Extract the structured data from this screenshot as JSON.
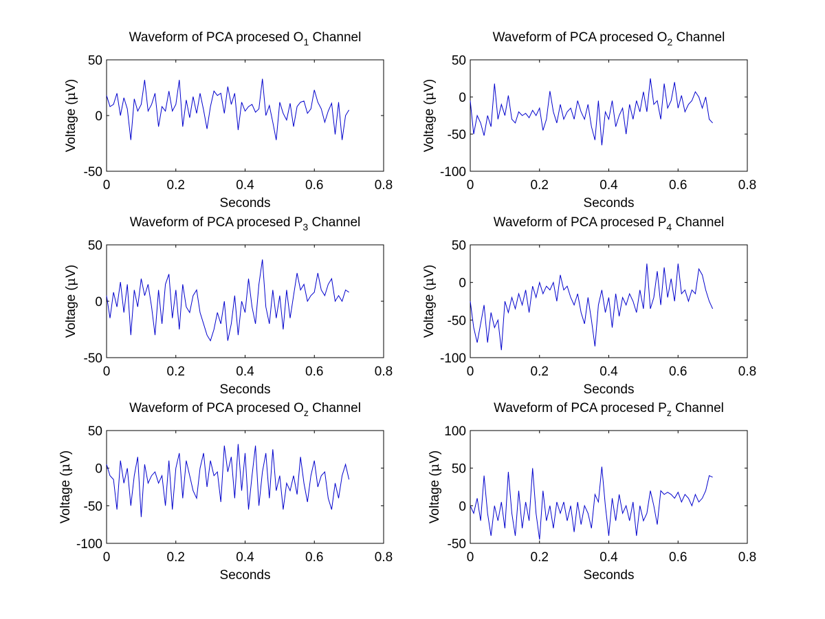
{
  "chart_data": [
    {
      "type": "line",
      "title_prefix": "Waveform of PCA procesed O",
      "title_sub": "1",
      "title_suffix": " Channel",
      "xlabel": "Seconds",
      "ylabel_prefix": "Voltage (",
      "ylabel_mu": "μ",
      "ylabel_suffix": "V)",
      "xlim": [
        0,
        0.8
      ],
      "ylim": [
        -50,
        50
      ],
      "xticks": [
        "0",
        "0.2",
        "0.4",
        "0.6",
        "0.8"
      ],
      "yticks": [
        "-50",
        "0",
        "50"
      ],
      "grid": false,
      "line_color": "#0000cc",
      "series": [
        {
          "x": [
            0.0,
            0.01,
            0.02,
            0.03,
            0.04,
            0.05,
            0.06,
            0.07,
            0.08,
            0.09,
            0.1,
            0.11,
            0.12,
            0.13,
            0.14,
            0.15,
            0.16,
            0.17,
            0.18,
            0.19,
            0.2,
            0.21,
            0.22,
            0.23,
            0.24,
            0.25,
            0.26,
            0.27,
            0.28,
            0.29,
            0.3,
            0.31,
            0.32,
            0.33,
            0.34,
            0.35,
            0.36,
            0.37,
            0.38,
            0.39,
            0.4,
            0.41,
            0.42,
            0.43,
            0.44,
            0.45,
            0.46,
            0.47,
            0.48,
            0.49,
            0.5,
            0.51,
            0.52,
            0.53,
            0.54,
            0.55,
            0.56,
            0.57,
            0.58,
            0.59,
            0.6,
            0.61,
            0.62,
            0.63,
            0.64,
            0.65,
            0.66,
            0.67,
            0.68,
            0.69,
            0.7
          ],
          "y": [
            18,
            8,
            10,
            20,
            0,
            16,
            6,
            -22,
            15,
            4,
            10,
            32,
            4,
            10,
            20,
            -10,
            8,
            4,
            22,
            4,
            10,
            32,
            -10,
            14,
            -2,
            17,
            2,
            20,
            5,
            -12,
            8,
            22,
            18,
            20,
            2,
            26,
            10,
            20,
            -13,
            12,
            4,
            8,
            10,
            3,
            6,
            33,
            0,
            9,
            -6,
            -22,
            12,
            2,
            -4,
            11,
            -10,
            8,
            12,
            13,
            2,
            6,
            23,
            12,
            6,
            -6,
            4,
            11,
            -17,
            12,
            -22,
            0,
            5
          ]
        }
      ]
    },
    {
      "type": "line",
      "title_prefix": "Waveform of PCA procesed O",
      "title_sub": "2",
      "title_suffix": " Channel",
      "xlabel": "Seconds",
      "ylabel_prefix": "Voltage (",
      "ylabel_mu": "μ",
      "ylabel_suffix": "V)",
      "xlim": [
        0,
        0.8
      ],
      "ylim": [
        -100,
        50
      ],
      "xticks": [
        "0",
        "0.2",
        "0.4",
        "0.6",
        "0.8"
      ],
      "yticks": [
        "-100",
        "-50",
        "0",
        "50"
      ],
      "grid": false,
      "line_color": "#0000cc",
      "series": [
        {
          "x": [
            0.0,
            0.01,
            0.02,
            0.03,
            0.04,
            0.05,
            0.06,
            0.07,
            0.08,
            0.09,
            0.1,
            0.11,
            0.12,
            0.13,
            0.14,
            0.15,
            0.16,
            0.17,
            0.18,
            0.19,
            0.2,
            0.21,
            0.22,
            0.23,
            0.24,
            0.25,
            0.26,
            0.27,
            0.28,
            0.29,
            0.3,
            0.31,
            0.32,
            0.33,
            0.34,
            0.35,
            0.36,
            0.37,
            0.38,
            0.39,
            0.4,
            0.41,
            0.42,
            0.43,
            0.44,
            0.45,
            0.46,
            0.47,
            0.48,
            0.49,
            0.5,
            0.51,
            0.52,
            0.53,
            0.54,
            0.55,
            0.56,
            0.57,
            0.58,
            0.59,
            0.6,
            0.61,
            0.62,
            0.63,
            0.64,
            0.65,
            0.66,
            0.67,
            0.68,
            0.69,
            0.7
          ],
          "y": [
            -5,
            -50,
            -25,
            -35,
            -52,
            -25,
            -40,
            18,
            -30,
            -10,
            -25,
            2,
            -30,
            -35,
            -20,
            -25,
            -22,
            -28,
            -18,
            -25,
            -15,
            -45,
            -30,
            8,
            -20,
            -35,
            -10,
            -30,
            -20,
            -15,
            -30,
            -5,
            -20,
            -30,
            -10,
            -40,
            -58,
            -5,
            -65,
            -20,
            -30,
            -5,
            -40,
            -25,
            -15,
            -50,
            -10,
            -30,
            -5,
            -20,
            7,
            -20,
            25,
            -10,
            -5,
            -30,
            18,
            -15,
            -5,
            20,
            -15,
            2,
            -20,
            -10,
            -5,
            7,
            0,
            -15,
            0,
            -30,
            -35
          ]
        }
      ]
    },
    {
      "type": "line",
      "title_prefix": "Waveform of PCA procesed P",
      "title_sub": "3",
      "title_suffix": " Channel",
      "xlabel": "Seconds",
      "ylabel_prefix": "Voltage (",
      "ylabel_mu": "μ",
      "ylabel_suffix": "V)",
      "xlim": [
        0,
        0.8
      ],
      "ylim": [
        -50,
        50
      ],
      "xticks": [
        "0",
        "0.2",
        "0.4",
        "0.6",
        "0.8"
      ],
      "yticks": [
        "-50",
        "0",
        "50"
      ],
      "grid": false,
      "line_color": "#0000cc",
      "series": [
        {
          "x": [
            0.0,
            0.01,
            0.02,
            0.03,
            0.04,
            0.05,
            0.06,
            0.07,
            0.08,
            0.09,
            0.1,
            0.11,
            0.12,
            0.13,
            0.14,
            0.15,
            0.16,
            0.17,
            0.18,
            0.19,
            0.2,
            0.21,
            0.22,
            0.23,
            0.24,
            0.25,
            0.26,
            0.27,
            0.28,
            0.29,
            0.3,
            0.31,
            0.32,
            0.33,
            0.34,
            0.35,
            0.36,
            0.37,
            0.38,
            0.39,
            0.4,
            0.41,
            0.42,
            0.43,
            0.44,
            0.45,
            0.46,
            0.47,
            0.48,
            0.49,
            0.5,
            0.51,
            0.52,
            0.53,
            0.54,
            0.55,
            0.56,
            0.57,
            0.58,
            0.59,
            0.6,
            0.61,
            0.62,
            0.63,
            0.64,
            0.65,
            0.66,
            0.67,
            0.68,
            0.69,
            0.7
          ],
          "y": [
            5,
            -15,
            8,
            -5,
            17,
            -10,
            15,
            -30,
            10,
            -5,
            20,
            5,
            15,
            -5,
            -30,
            10,
            -20,
            15,
            24,
            -15,
            10,
            -25,
            15,
            -5,
            -10,
            5,
            10,
            -10,
            -20,
            -30,
            -35,
            -25,
            -10,
            -20,
            0,
            -35,
            -20,
            5,
            -30,
            0,
            -10,
            20,
            -5,
            -20,
            15,
            37,
            -5,
            -20,
            10,
            -15,
            5,
            -25,
            10,
            -15,
            5,
            25,
            10,
            15,
            0,
            5,
            8,
            25,
            10,
            5,
            15,
            20,
            0,
            5,
            0,
            10,
            8
          ]
        }
      ]
    },
    {
      "type": "line",
      "title_prefix": "Waveform of PCA procesed P",
      "title_sub": "4",
      "title_suffix": " Channel",
      "xlabel": "Seconds",
      "ylabel_prefix": "Voltage (",
      "ylabel_mu": "μ",
      "ylabel_suffix": "V)",
      "xlim": [
        0,
        0.8
      ],
      "ylim": [
        -100,
        50
      ],
      "xticks": [
        "0",
        "0.2",
        "0.4",
        "0.6",
        "0.8"
      ],
      "yticks": [
        "-100",
        "-50",
        "0",
        "50"
      ],
      "grid": false,
      "line_color": "#0000cc",
      "series": [
        {
          "x": [
            0.0,
            0.01,
            0.02,
            0.03,
            0.04,
            0.05,
            0.06,
            0.07,
            0.08,
            0.09,
            0.1,
            0.11,
            0.12,
            0.13,
            0.14,
            0.15,
            0.16,
            0.17,
            0.18,
            0.19,
            0.2,
            0.21,
            0.22,
            0.23,
            0.24,
            0.25,
            0.26,
            0.27,
            0.28,
            0.29,
            0.3,
            0.31,
            0.32,
            0.33,
            0.34,
            0.35,
            0.36,
            0.37,
            0.38,
            0.39,
            0.4,
            0.41,
            0.42,
            0.43,
            0.44,
            0.45,
            0.46,
            0.47,
            0.48,
            0.49,
            0.5,
            0.51,
            0.52,
            0.53,
            0.54,
            0.55,
            0.56,
            0.57,
            0.58,
            0.59,
            0.6,
            0.61,
            0.62,
            0.63,
            0.64,
            0.65,
            0.66,
            0.67,
            0.68,
            0.69,
            0.7
          ],
          "y": [
            -25,
            -60,
            -80,
            -55,
            -30,
            -80,
            -40,
            -60,
            -50,
            -90,
            -25,
            -40,
            -20,
            -35,
            -15,
            -30,
            -10,
            -40,
            -5,
            -20,
            0,
            -15,
            -5,
            -10,
            0,
            -25,
            10,
            -10,
            -5,
            -20,
            -30,
            -15,
            -40,
            -55,
            -20,
            -50,
            -85,
            -30,
            -10,
            -40,
            -20,
            -60,
            -15,
            -45,
            -20,
            -30,
            -15,
            -25,
            -40,
            -10,
            -35,
            25,
            -35,
            -20,
            15,
            -30,
            20,
            -20,
            5,
            -25,
            25,
            -15,
            -10,
            -25,
            -10,
            -15,
            18,
            10,
            -10,
            -25,
            -35
          ]
        }
      ]
    },
    {
      "type": "line",
      "title_prefix": "Waveform of PCA procesed O",
      "title_sub": "z",
      "title_suffix": " Channel",
      "xlabel": "Seconds",
      "ylabel_prefix": "Voltage (",
      "ylabel_mu": "μ",
      "ylabel_suffix": "V)",
      "xlim": [
        0,
        0.8
      ],
      "ylim": [
        -100,
        50
      ],
      "xticks": [
        "0",
        "0.2",
        "0.4",
        "0.6",
        "0.8"
      ],
      "yticks": [
        "-100",
        "-50",
        "0",
        "50"
      ],
      "grid": false,
      "line_color": "#0000cc",
      "series": [
        {
          "x": [
            0.0,
            0.01,
            0.02,
            0.03,
            0.04,
            0.05,
            0.06,
            0.07,
            0.08,
            0.09,
            0.1,
            0.11,
            0.12,
            0.13,
            0.14,
            0.15,
            0.16,
            0.17,
            0.18,
            0.19,
            0.2,
            0.21,
            0.22,
            0.23,
            0.24,
            0.25,
            0.26,
            0.27,
            0.28,
            0.29,
            0.3,
            0.31,
            0.32,
            0.33,
            0.34,
            0.35,
            0.36,
            0.37,
            0.38,
            0.39,
            0.4,
            0.41,
            0.42,
            0.43,
            0.44,
            0.45,
            0.46,
            0.47,
            0.48,
            0.49,
            0.5,
            0.51,
            0.52,
            0.53,
            0.54,
            0.55,
            0.56,
            0.57,
            0.58,
            0.59,
            0.6,
            0.61,
            0.62,
            0.63,
            0.64,
            0.65,
            0.66,
            0.67,
            0.68,
            0.69,
            0.7
          ],
          "y": [
            5,
            -10,
            -15,
            -55,
            10,
            -20,
            0,
            -50,
            -10,
            15,
            -65,
            5,
            -20,
            -10,
            -5,
            -20,
            -10,
            -50,
            10,
            -55,
            0,
            20,
            -40,
            10,
            -10,
            -30,
            -40,
            0,
            20,
            -25,
            10,
            -10,
            -5,
            -45,
            30,
            -5,
            15,
            -40,
            32,
            -30,
            20,
            -55,
            -10,
            30,
            -50,
            -5,
            20,
            -40,
            25,
            -30,
            -10,
            -55,
            -20,
            -30,
            -10,
            -35,
            15,
            -20,
            -45,
            -10,
            10,
            -25,
            -10,
            -5,
            -40,
            -55,
            -20,
            -40,
            -10,
            5,
            -15
          ]
        }
      ]
    },
    {
      "type": "line",
      "title_prefix": "Waveform of PCA procesed P",
      "title_sub": "z",
      "title_suffix": " Channel",
      "xlabel": "Seconds",
      "ylabel_prefix": "Voltage (",
      "ylabel_mu": "μ",
      "ylabel_suffix": "V)",
      "xlim": [
        0,
        0.8
      ],
      "ylim": [
        -50,
        100
      ],
      "xticks": [
        "0",
        "0.2",
        "0.4",
        "0.6",
        "0.8"
      ],
      "yticks": [
        "-50",
        "0",
        "50",
        "100"
      ],
      "grid": false,
      "line_color": "#0000cc",
      "series": [
        {
          "x": [
            0.0,
            0.01,
            0.02,
            0.03,
            0.04,
            0.05,
            0.06,
            0.07,
            0.08,
            0.09,
            0.1,
            0.11,
            0.12,
            0.13,
            0.14,
            0.15,
            0.16,
            0.17,
            0.18,
            0.19,
            0.2,
            0.21,
            0.22,
            0.23,
            0.24,
            0.25,
            0.26,
            0.27,
            0.28,
            0.29,
            0.3,
            0.31,
            0.32,
            0.33,
            0.34,
            0.35,
            0.36,
            0.37,
            0.38,
            0.39,
            0.4,
            0.41,
            0.42,
            0.43,
            0.44,
            0.45,
            0.46,
            0.47,
            0.48,
            0.49,
            0.5,
            0.51,
            0.52,
            0.53,
            0.54,
            0.55,
            0.56,
            0.57,
            0.58,
            0.59,
            0.6,
            0.61,
            0.62,
            0.63,
            0.64,
            0.65,
            0.66,
            0.67,
            0.68,
            0.69,
            0.7
          ],
          "y": [
            0,
            -10,
            10,
            -20,
            40,
            -10,
            -40,
            0,
            -20,
            5,
            -30,
            45,
            -10,
            -40,
            20,
            -30,
            5,
            -20,
            50,
            -10,
            -45,
            20,
            -20,
            0,
            -30,
            5,
            -10,
            5,
            -20,
            0,
            -35,
            5,
            -25,
            0,
            -10,
            -30,
            15,
            5,
            52,
            0,
            -40,
            10,
            -20,
            15,
            -10,
            0,
            -20,
            5,
            -40,
            0,
            -20,
            -10,
            20,
            0,
            -25,
            20,
            15,
            18,
            15,
            10,
            18,
            5,
            15,
            10,
            0,
            15,
            5,
            10,
            20,
            40,
            38
          ]
        }
      ]
    }
  ]
}
